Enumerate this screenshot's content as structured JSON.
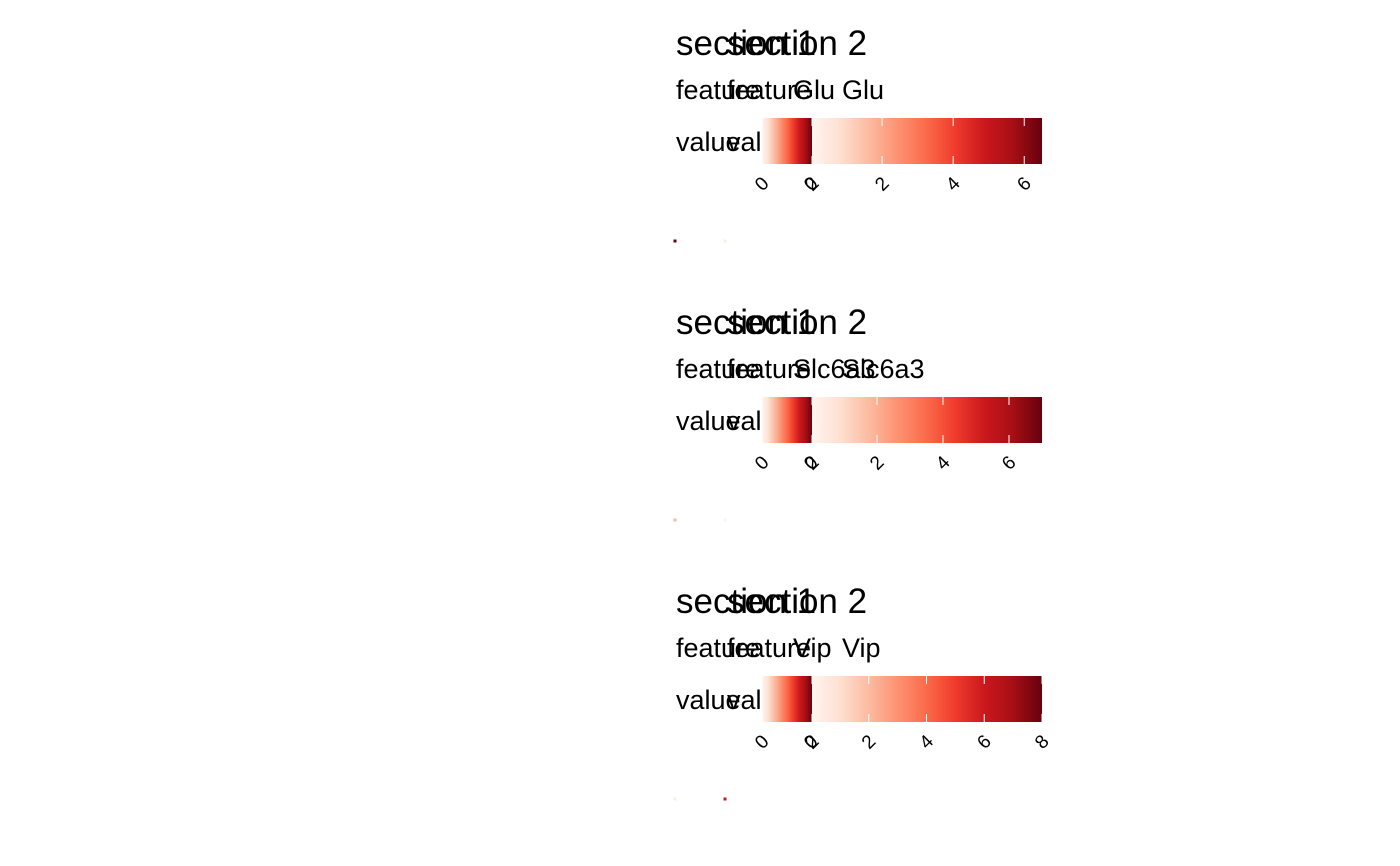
{
  "colors": {
    "scale": [
      "#fff5f0",
      "#fee0d2",
      "#fcbba1",
      "#fc9272",
      "#fb6a4a",
      "#ef3b2c",
      "#cb181d",
      "#a50f15",
      "#67000d"
    ],
    "dot": "#e34a33"
  },
  "chart_data": [
    {
      "type": "heatmap",
      "feature": "Glu",
      "legend_title_prefix": "feature",
      "legend_value_label": "value",
      "sections": [
        {
          "title": "section 1",
          "domain": [
            0,
            2
          ],
          "ticks": [
            0,
            2
          ],
          "value_points": [
            {
              "x": 0,
              "y": 0,
              "value": 6
            }
          ]
        },
        {
          "title": "section 2",
          "domain": [
            0,
            6.5
          ],
          "ticks": [
            0,
            2,
            4,
            6
          ],
          "value_points": [
            {
              "x": 0,
              "y": 0,
              "value": 0.3
            }
          ]
        }
      ]
    },
    {
      "type": "heatmap",
      "feature": "Slc6a3",
      "legend_title_prefix": "feature",
      "legend_value_label": "value",
      "sections": [
        {
          "title": "section 1",
          "domain": [
            0,
            2
          ],
          "ticks": [
            0,
            2
          ],
          "value_points": [
            {
              "x": 0,
              "y": 0,
              "value": 0.5
            }
          ]
        },
        {
          "title": "section 2",
          "domain": [
            0,
            7
          ],
          "ticks": [
            0,
            2,
            4,
            6
          ],
          "value_points": [
            {
              "x": 0,
              "y": 0,
              "value": 0.1
            }
          ]
        }
      ]
    },
    {
      "type": "heatmap",
      "feature": "Vip",
      "legend_title_prefix": "feature",
      "legend_value_label": "value",
      "sections": [
        {
          "title": "section 1",
          "domain": [
            0,
            2
          ],
          "ticks": [
            0,
            2
          ],
          "value_points": [
            {
              "x": 0,
              "y": 0,
              "value": 0.1
            }
          ]
        },
        {
          "title": "section 2",
          "domain": [
            0,
            8
          ],
          "ticks": [
            0,
            2,
            4,
            6,
            8
          ],
          "value_points": [
            {
              "x": 0,
              "y": 0,
              "value": 6
            }
          ]
        }
      ]
    }
  ]
}
